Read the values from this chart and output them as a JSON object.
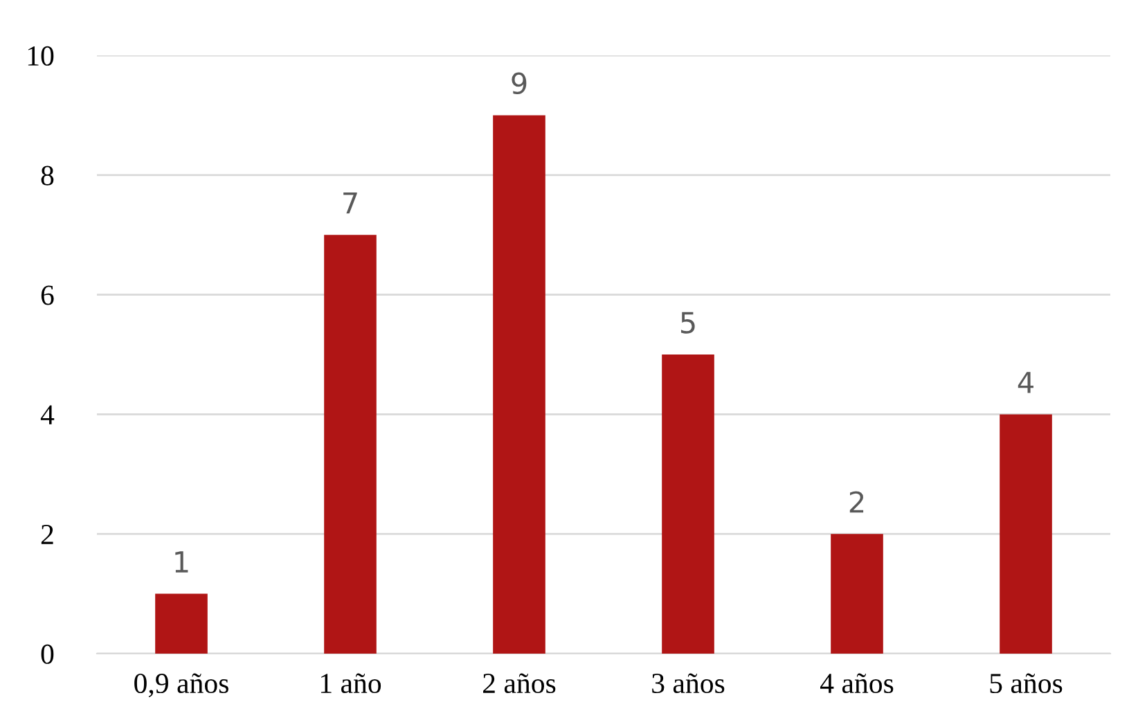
{
  "chart_data": {
    "type": "bar",
    "categories": [
      "0,9 años",
      "1 año",
      "2 años",
      "3 años",
      "4 años",
      "5 años"
    ],
    "values": [
      1,
      7,
      9,
      5,
      2,
      4
    ],
    "color": "#b01515",
    "ylim": [
      0,
      10
    ],
    "yticks": [
      0,
      2,
      4,
      6,
      8,
      10
    ],
    "grid": "y",
    "data_labels": true,
    "legend": false
  }
}
